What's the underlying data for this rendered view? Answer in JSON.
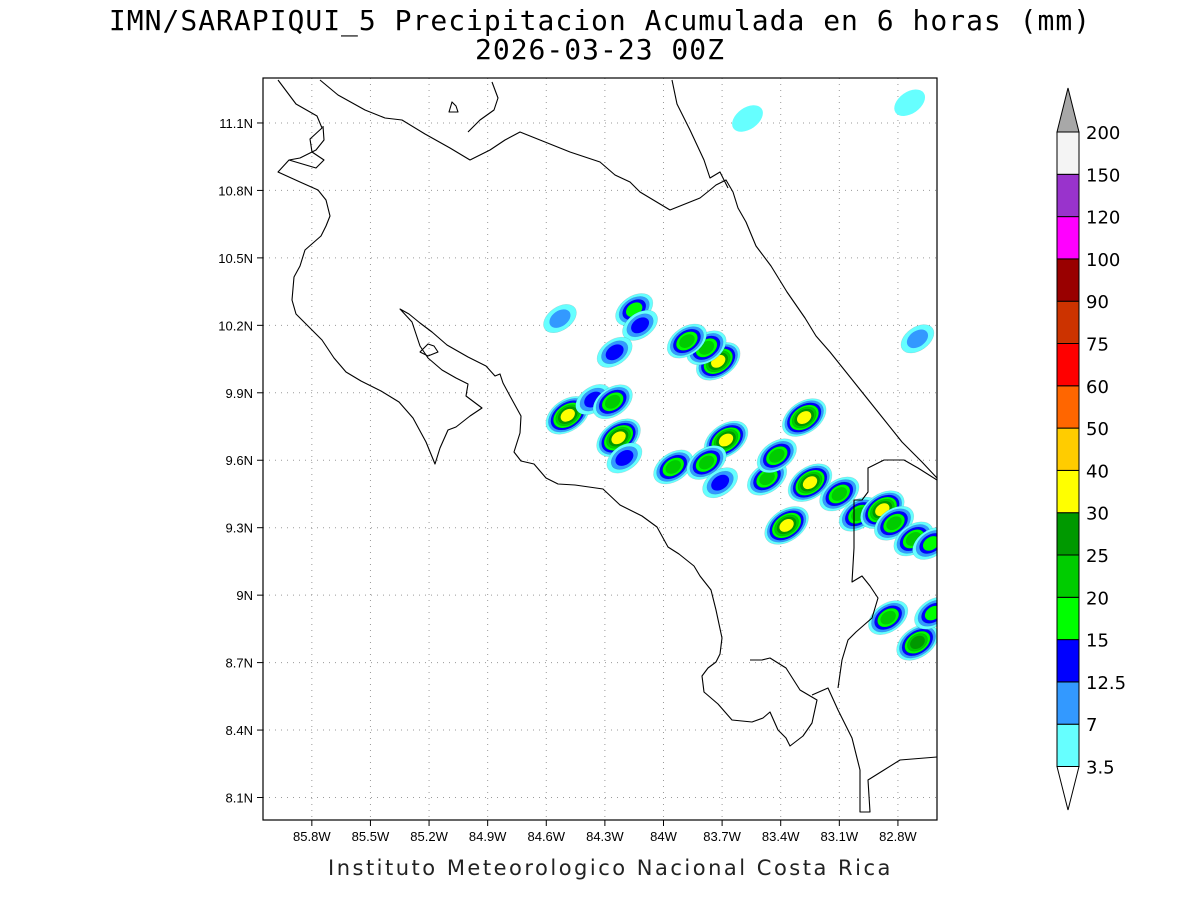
{
  "title": {
    "line1": "IMN/SARAPIQUI_5 Precipitacion Acumulada en 6 horas (mm)",
    "line2": "2026-03-23 00Z"
  },
  "footer": "Instituto Meteorologico Nacional Costa Rica",
  "map": {
    "lon_range": [
      -86.05,
      -82.6
    ],
    "lat_range": [
      8.0,
      11.3
    ],
    "x_ticks": [
      {
        "lon": -85.8,
        "label": "85.8W"
      },
      {
        "lon": -85.5,
        "label": "85.5W"
      },
      {
        "lon": -85.2,
        "label": "85.2W"
      },
      {
        "lon": -84.9,
        "label": "84.9W"
      },
      {
        "lon": -84.6,
        "label": "84.6W"
      },
      {
        "lon": -84.3,
        "label": "84.3W"
      },
      {
        "lon": -84.0,
        "label": "84W"
      },
      {
        "lon": -83.7,
        "label": "83.7W"
      },
      {
        "lon": -83.4,
        "label": "83.4W"
      },
      {
        "lon": -83.1,
        "label": "83.1W"
      },
      {
        "lon": -82.8,
        "label": "82.8W"
      }
    ],
    "y_ticks": [
      {
        "lat": 11.1,
        "label": "11.1N"
      },
      {
        "lat": 10.8,
        "label": "10.8N"
      },
      {
        "lat": 10.5,
        "label": "10.5N"
      },
      {
        "lat": 10.2,
        "label": "10.2N"
      },
      {
        "lat": 9.9,
        "label": "9.9N"
      },
      {
        "lat": 9.6,
        "label": "9.6N"
      },
      {
        "lat": 9.3,
        "label": "9.3N"
      },
      {
        "lat": 9.0,
        "label": "9N"
      },
      {
        "lat": 8.7,
        "label": "8.7N"
      },
      {
        "lat": 8.4,
        "label": "8.4N"
      },
      {
        "lat": 8.1,
        "label": "8.1N"
      }
    ],
    "grid": true
  },
  "colorbar": {
    "levels": [
      {
        "color": "#66ffff",
        "label": "3.5"
      },
      {
        "color": "#3399ff",
        "label": "7"
      },
      {
        "color": "#0000ff",
        "label": "12.5"
      },
      {
        "color": "#00ff00",
        "label": "15"
      },
      {
        "color": "#00cc00",
        "label": "20"
      },
      {
        "color": "#009900",
        "label": "25"
      },
      {
        "color": "#ffff00",
        "label": "30"
      },
      {
        "color": "#ffcc00",
        "label": "40"
      },
      {
        "color": "#ff6600",
        "label": "50"
      },
      {
        "color": "#ff0000",
        "label": "60"
      },
      {
        "color": "#cc3300",
        "label": "75"
      },
      {
        "color": "#990000",
        "label": "90"
      },
      {
        "color": "#ff00ff",
        "label": "100"
      },
      {
        "color": "#9933cc",
        "label": "120"
      },
      {
        "color": "#f4f4f4",
        "label": "150"
      },
      {
        "color": "#a8a8a8",
        "label": "200"
      }
    ]
  },
  "precip_cells": [
    {
      "lon": -83.72,
      "lat": 10.04,
      "max_mm": 35
    },
    {
      "lon": -83.78,
      "lat": 10.1,
      "max_mm": 22
    },
    {
      "lon": -83.88,
      "lat": 10.13,
      "max_mm": 20
    },
    {
      "lon": -84.15,
      "lat": 10.27,
      "max_mm": 15
    },
    {
      "lon": -84.12,
      "lat": 10.2,
      "max_mm": 12.5
    },
    {
      "lon": -84.53,
      "lat": 10.23,
      "max_mm": 7
    },
    {
      "lon": -84.25,
      "lat": 10.08,
      "max_mm": 12.5
    },
    {
      "lon": -84.49,
      "lat": 9.8,
      "max_mm": 30
    },
    {
      "lon": -84.36,
      "lat": 9.87,
      "max_mm": 12.5
    },
    {
      "lon": -84.26,
      "lat": 9.86,
      "max_mm": 20
    },
    {
      "lon": -84.23,
      "lat": 9.7,
      "max_mm": 30
    },
    {
      "lon": -84.2,
      "lat": 9.61,
      "max_mm": 12.5
    },
    {
      "lon": -83.95,
      "lat": 9.57,
      "max_mm": 20
    },
    {
      "lon": -83.68,
      "lat": 9.69,
      "max_mm": 35
    },
    {
      "lon": -83.78,
      "lat": 9.59,
      "max_mm": 20
    },
    {
      "lon": -83.71,
      "lat": 9.5,
      "max_mm": 12.5
    },
    {
      "lon": -83.47,
      "lat": 9.52,
      "max_mm": 20
    },
    {
      "lon": -83.42,
      "lat": 9.62,
      "max_mm": 20
    },
    {
      "lon": -83.28,
      "lat": 9.79,
      "max_mm": 30
    },
    {
      "lon": -83.37,
      "lat": 9.31,
      "max_mm": 30
    },
    {
      "lon": -83.25,
      "lat": 9.5,
      "max_mm": 30
    },
    {
      "lon": -83.1,
      "lat": 9.45,
      "max_mm": 20
    },
    {
      "lon": -83.0,
      "lat": 9.36,
      "max_mm": 20
    },
    {
      "lon": -82.88,
      "lat": 9.38,
      "max_mm": 35
    },
    {
      "lon": -82.82,
      "lat": 9.32,
      "max_mm": 20
    },
    {
      "lon": -82.72,
      "lat": 9.25,
      "max_mm": 20
    },
    {
      "lon": -82.63,
      "lat": 9.23,
      "max_mm": 15
    },
    {
      "lon": -82.85,
      "lat": 8.9,
      "max_mm": 20
    },
    {
      "lon": -82.7,
      "lat": 8.79,
      "max_mm": 25
    },
    {
      "lon": -82.62,
      "lat": 8.92,
      "max_mm": 15
    },
    {
      "lon": -82.74,
      "lat": 11.19,
      "max_mm": 3.5
    },
    {
      "lon": -83.57,
      "lat": 11.12,
      "max_mm": 3.5
    },
    {
      "lon": -82.7,
      "lat": 10.14,
      "max_mm": 7
    }
  ]
}
